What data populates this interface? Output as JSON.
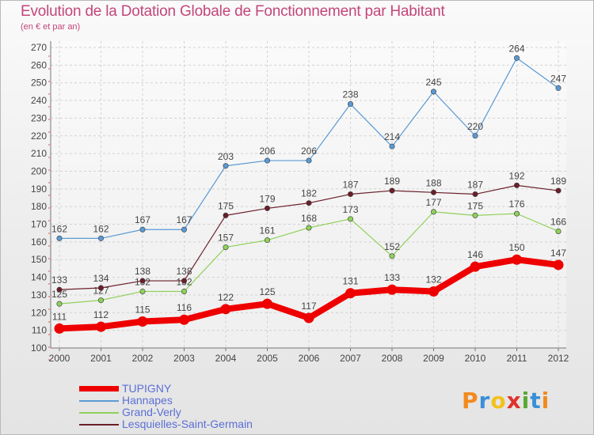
{
  "title": "Evolution de la Dotation Globale de Fonctionnement par Habitant",
  "subtitle": "(en € et par an)",
  "logo": "Proxiti",
  "chart_data": {
    "type": "line",
    "title": "Evolution de la Dotation Globale de Fonctionnement par Habitant",
    "ylabel": "(en € et par an)",
    "xlabel": "",
    "x": [
      "2000",
      "2001",
      "2002",
      "2003",
      "2004",
      "2005",
      "2006",
      "2007",
      "2008",
      "2009",
      "2010",
      "2011",
      "2012"
    ],
    "ylim": [
      100,
      270
    ],
    "yticks": [
      100,
      110,
      120,
      130,
      140,
      150,
      160,
      170,
      180,
      190,
      200,
      210,
      220,
      230,
      240,
      250,
      260,
      270
    ],
    "grid": true,
    "legend_position": "bottom-left",
    "series": [
      {
        "name": "TUPIGNY",
        "color": "#ee0000",
        "values": [
          111,
          112,
          115,
          116,
          122,
          125,
          117,
          131,
          133,
          132,
          146,
          150,
          147
        ]
      },
      {
        "name": "Hannapes",
        "color": "#5a9ad4",
        "values": [
          162,
          162,
          167,
          167,
          203,
          206,
          206,
          238,
          214,
          245,
          220,
          264,
          247
        ]
      },
      {
        "name": "Grand-Verly",
        "color": "#8fd15a",
        "values": [
          125,
          127,
          132,
          132,
          157,
          161,
          168,
          173,
          152,
          177,
          175,
          176,
          166
        ]
      },
      {
        "name": "Lesquielles-Saint-Germain",
        "color": "#6b1f2a",
        "values": [
          133,
          134,
          138,
          138,
          175,
          179,
          182,
          187,
          189,
          188,
          187,
          192,
          189
        ]
      }
    ]
  }
}
